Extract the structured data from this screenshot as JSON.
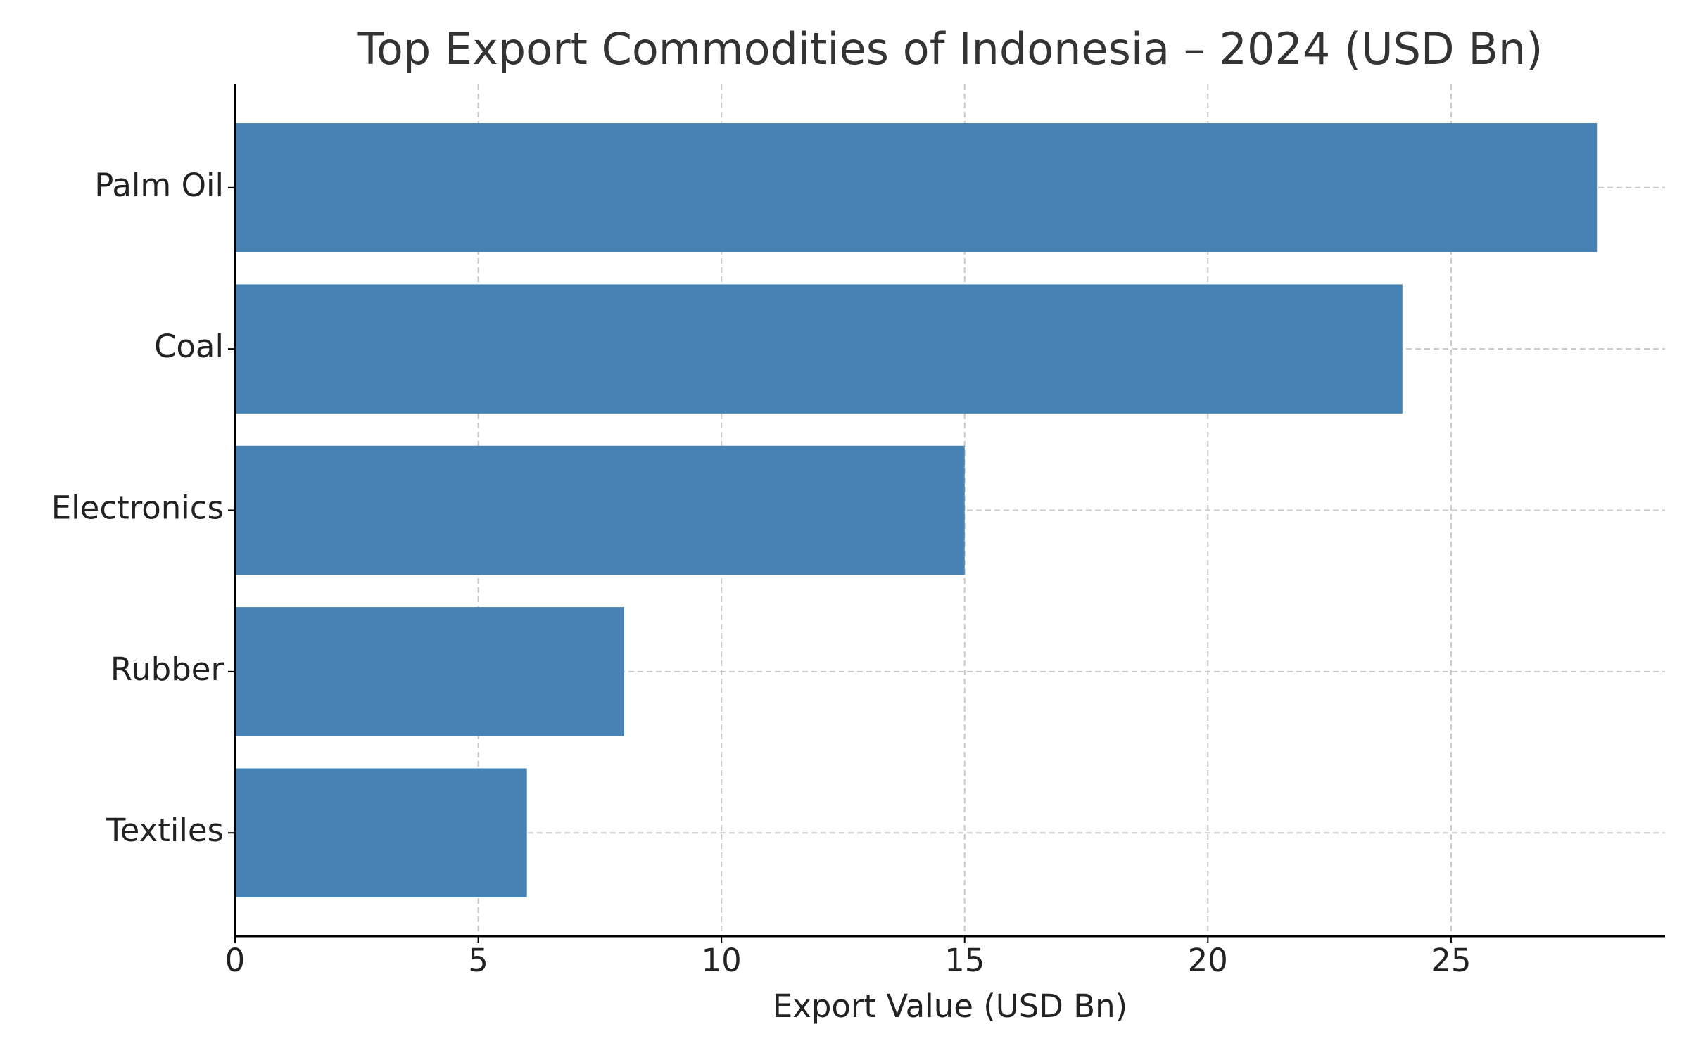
{
  "chart_data": {
    "type": "bar",
    "orientation": "horizontal",
    "title": "Top Export Commodities of Indonesia – 2024 (USD Bn)",
    "x_label": "Export Value (USD Bn)",
    "categories": [
      "Palm Oil",
      "Coal",
      "Electronics",
      "Rubber",
      "Textiles"
    ],
    "values": [
      28,
      24,
      15,
      8,
      6
    ],
    "color": "#4682b4",
    "xlim": [
      0,
      29.4
    ],
    "xticks": [
      0,
      5,
      10,
      15,
      20,
      25
    ],
    "grid": true
  }
}
